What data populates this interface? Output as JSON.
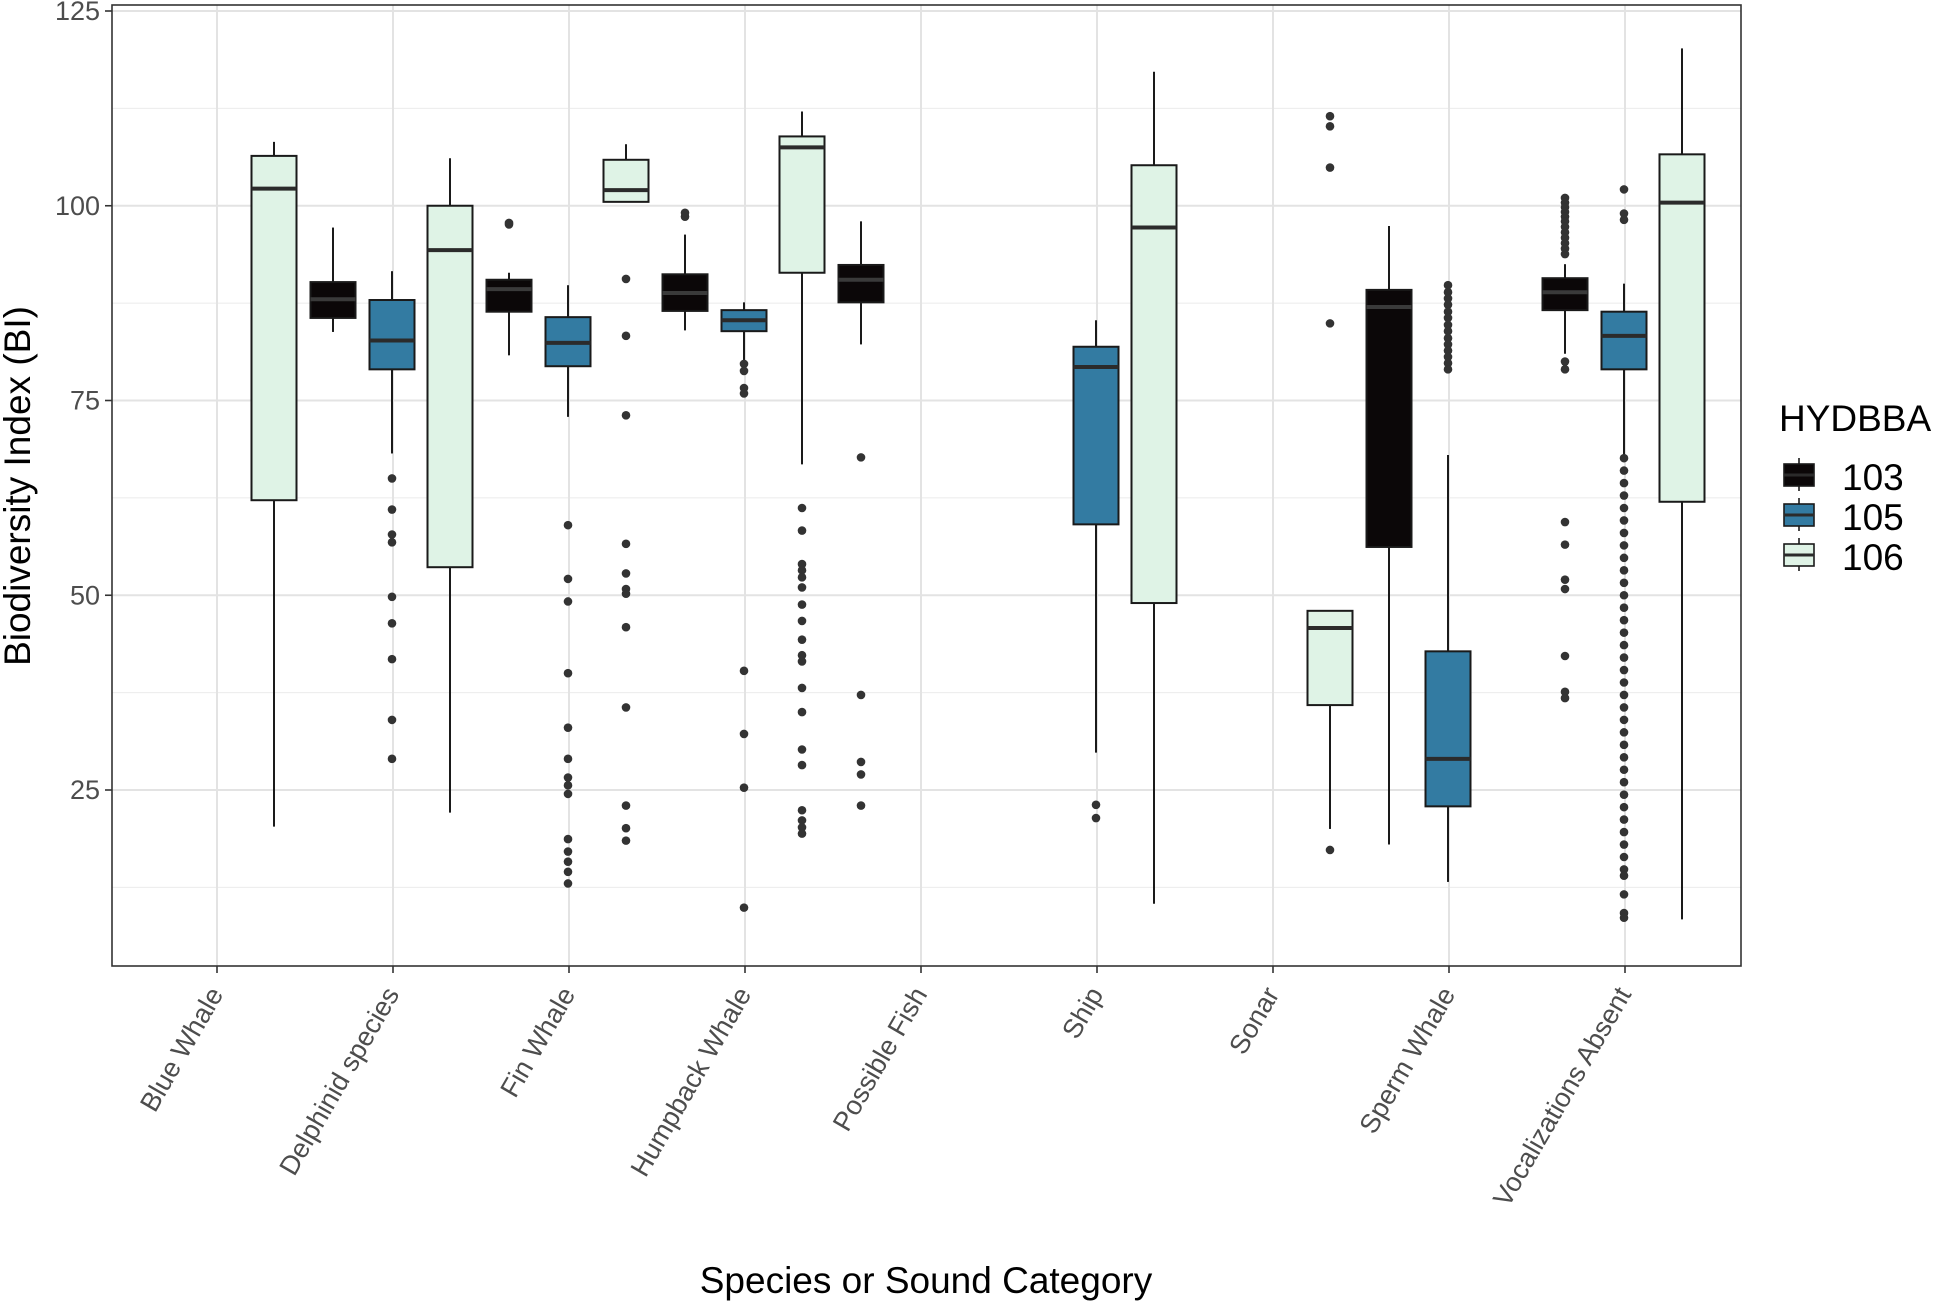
{
  "chart_data": {
    "type": "boxplot",
    "xlabel": "Species or Sound Category",
    "ylabel": "Biodiversity Index (BI)",
    "ylim": [
      0,
      125
    ],
    "yticks": [
      25,
      50,
      75,
      100,
      125
    ],
    "ytick_labels": [
      "25",
      "50",
      "75",
      "100",
      "125"
    ],
    "categories": [
      "Blue Whale",
      "Delphinid species",
      "Fin Whale",
      "Humpback Whale",
      "Possible Fish",
      "Ship",
      "Sonar",
      "Sperm Whale",
      "Vocalizations Absent"
    ],
    "legend": {
      "title": "HYDBBA",
      "placement": "right",
      "entries": [
        {
          "name": "103",
          "color": "#0b0708"
        },
        {
          "name": "105",
          "color": "#337ba2"
        },
        {
          "name": "106",
          "color": "#dff3e6"
        }
      ]
    },
    "grid": true,
    "boxes": [
      {
        "category": "Blue Whale",
        "group": "106",
        "whisker_low": 20.3,
        "q1": 62.2,
        "median": 102.2,
        "q3": 106.4,
        "whisker_high": 108.2,
        "outliers": []
      },
      {
        "category": "Delphinid species",
        "group": "103",
        "whisker_low": 83.8,
        "q1": 85.6,
        "median": 88.0,
        "q3": 90.2,
        "whisker_high": 97.2,
        "outliers": []
      },
      {
        "category": "Delphinid species",
        "group": "105",
        "whisker_low": 68.2,
        "q1": 79.0,
        "median": 82.7,
        "q3": 87.9,
        "whisker_high": 91.6,
        "outliers": [
          65.0,
          61.0,
          57.8,
          56.8,
          49.8,
          46.4,
          41.8,
          34.0,
          29.0
        ]
      },
      {
        "category": "Delphinid species",
        "group": "106",
        "whisker_low": 22.1,
        "q1": 53.6,
        "median": 94.3,
        "q3": 100.0,
        "whisker_high": 106.1,
        "outliers": []
      },
      {
        "category": "Fin Whale",
        "group": "103",
        "whisker_low": 80.8,
        "q1": 86.4,
        "median": 89.3,
        "q3": 90.5,
        "whisker_high": 91.4,
        "outliers": [
          97.6,
          97.8
        ]
      },
      {
        "category": "Fin Whale",
        "group": "105",
        "whisker_low": 72.9,
        "q1": 79.4,
        "median": 82.4,
        "q3": 85.7,
        "whisker_high": 89.8,
        "outliers": [
          59.0,
          52.1,
          49.2,
          40.0,
          33.0,
          29.0,
          26.6,
          25.6,
          24.5,
          18.7,
          17.1,
          15.8,
          14.5,
          13.0
        ]
      },
      {
        "category": "Fin Whale",
        "group": "106",
        "whisker_low": 100.5,
        "q1": 100.5,
        "median": 102.0,
        "q3": 105.9,
        "whisker_high": 107.9,
        "outliers": [
          90.6,
          83.3,
          73.1,
          56.6,
          52.8,
          50.8,
          50.2,
          45.9,
          35.6,
          23.0,
          20.1,
          18.5
        ]
      },
      {
        "category": "Humpback Whale",
        "group": "103",
        "whisker_low": 84.0,
        "q1": 86.5,
        "median": 88.8,
        "q3": 91.2,
        "whisker_high": 96.3,
        "outliers": [
          98.6,
          99.1
        ]
      },
      {
        "category": "Humpback Whale",
        "group": "105",
        "whisker_low": 80.2,
        "q1": 83.9,
        "median": 85.3,
        "q3": 86.6,
        "whisker_high": 87.6,
        "outliers": [
          79.7,
          78.8,
          76.6,
          75.9,
          40.3,
          32.2,
          25.3,
          9.9
        ]
      },
      {
        "category": "Humpback Whale",
        "group": "106",
        "whisker_low": 66.8,
        "q1": 91.4,
        "median": 107.5,
        "q3": 108.9,
        "whisker_high": 112.1,
        "outliers": [
          61.2,
          58.3,
          54.0,
          53.2,
          52.3,
          51.0,
          48.8,
          46.7,
          44.3,
          42.3,
          41.5,
          38.1,
          35.0,
          30.2,
          28.2,
          22.4,
          21.1,
          20.2,
          19.4
        ]
      },
      {
        "category": "Possible Fish",
        "group": "103",
        "whisker_low": 82.2,
        "q1": 87.6,
        "median": 90.5,
        "q3": 92.4,
        "whisker_high": 98.0,
        "outliers": [
          67.7,
          37.2,
          28.6,
          27.0,
          23.0
        ]
      },
      {
        "category": "Ship",
        "group": "105",
        "whisker_low": 29.8,
        "q1": 59.1,
        "median": 79.3,
        "q3": 81.9,
        "whisker_high": 85.3,
        "outliers": [
          23.1,
          21.4
        ]
      },
      {
        "category": "Ship",
        "group": "106",
        "whisker_low": 10.4,
        "q1": 49.0,
        "median": 97.2,
        "q3": 105.2,
        "whisker_high": 117.2,
        "outliers": []
      },
      {
        "category": "Sonar",
        "group": "106",
        "whisker_low": 20.0,
        "q1": 35.9,
        "median": 45.8,
        "q3": 48.0,
        "whisker_high": 48.0,
        "outliers": [
          111.5,
          110.2,
          104.9,
          84.9,
          17.3
        ]
      },
      {
        "category": "Sperm Whale",
        "group": "103",
        "whisker_low": 18.0,
        "q1": 56.2,
        "median": 87.0,
        "q3": 89.2,
        "whisker_high": 97.4,
        "outliers": []
      },
      {
        "category": "Sperm Whale",
        "group": "105",
        "whisker_low": 13.2,
        "q1": 22.9,
        "median": 29.0,
        "q3": 42.8,
        "whisker_high": 68.0,
        "outliers": [
          89.8,
          88.9,
          88.1,
          87.3,
          86.4,
          85.6,
          84.7,
          83.9,
          83.0,
          82.2,
          81.4,
          80.6,
          79.8,
          79.0
        ]
      },
      {
        "category": "Vocalizations Absent",
        "group": "103",
        "whisker_low": 81.0,
        "q1": 86.6,
        "median": 88.9,
        "q3": 90.7,
        "whisker_high": 92.5,
        "outliers": [
          101.0,
          100.4,
          99.8,
          99.2,
          98.6,
          98.0,
          97.3,
          96.6,
          95.9,
          95.2,
          94.5,
          93.8,
          80.0,
          79.0,
          59.4,
          56.5,
          52.0,
          50.8,
          42.2,
          37.6,
          36.8
        ]
      },
      {
        "category": "Vocalizations Absent",
        "group": "105",
        "whisker_low": 68.0,
        "q1": 79.0,
        "median": 83.3,
        "q3": 86.4,
        "whisker_high": 90.0,
        "outliers": [
          102.1,
          99.0,
          98.2,
          67.6,
          66.0,
          64.4,
          62.8,
          61.2,
          59.6,
          58.0,
          56.4,
          54.8,
          53.2,
          51.6,
          50.0,
          48.4,
          46.8,
          45.2,
          43.6,
          42.0,
          40.4,
          38.8,
          37.2,
          35.6,
          34.0,
          32.4,
          30.8,
          29.2,
          27.6,
          26.0,
          24.4,
          22.8,
          21.2,
          19.6,
          18.0,
          16.4,
          14.8,
          14.0,
          11.6,
          9.2,
          8.6
        ]
      },
      {
        "category": "Vocalizations Absent",
        "group": "106",
        "whisker_low": 8.4,
        "q1": 62.0,
        "median": 100.4,
        "q3": 106.6,
        "whisker_high": 120.2,
        "outliers": []
      }
    ]
  }
}
